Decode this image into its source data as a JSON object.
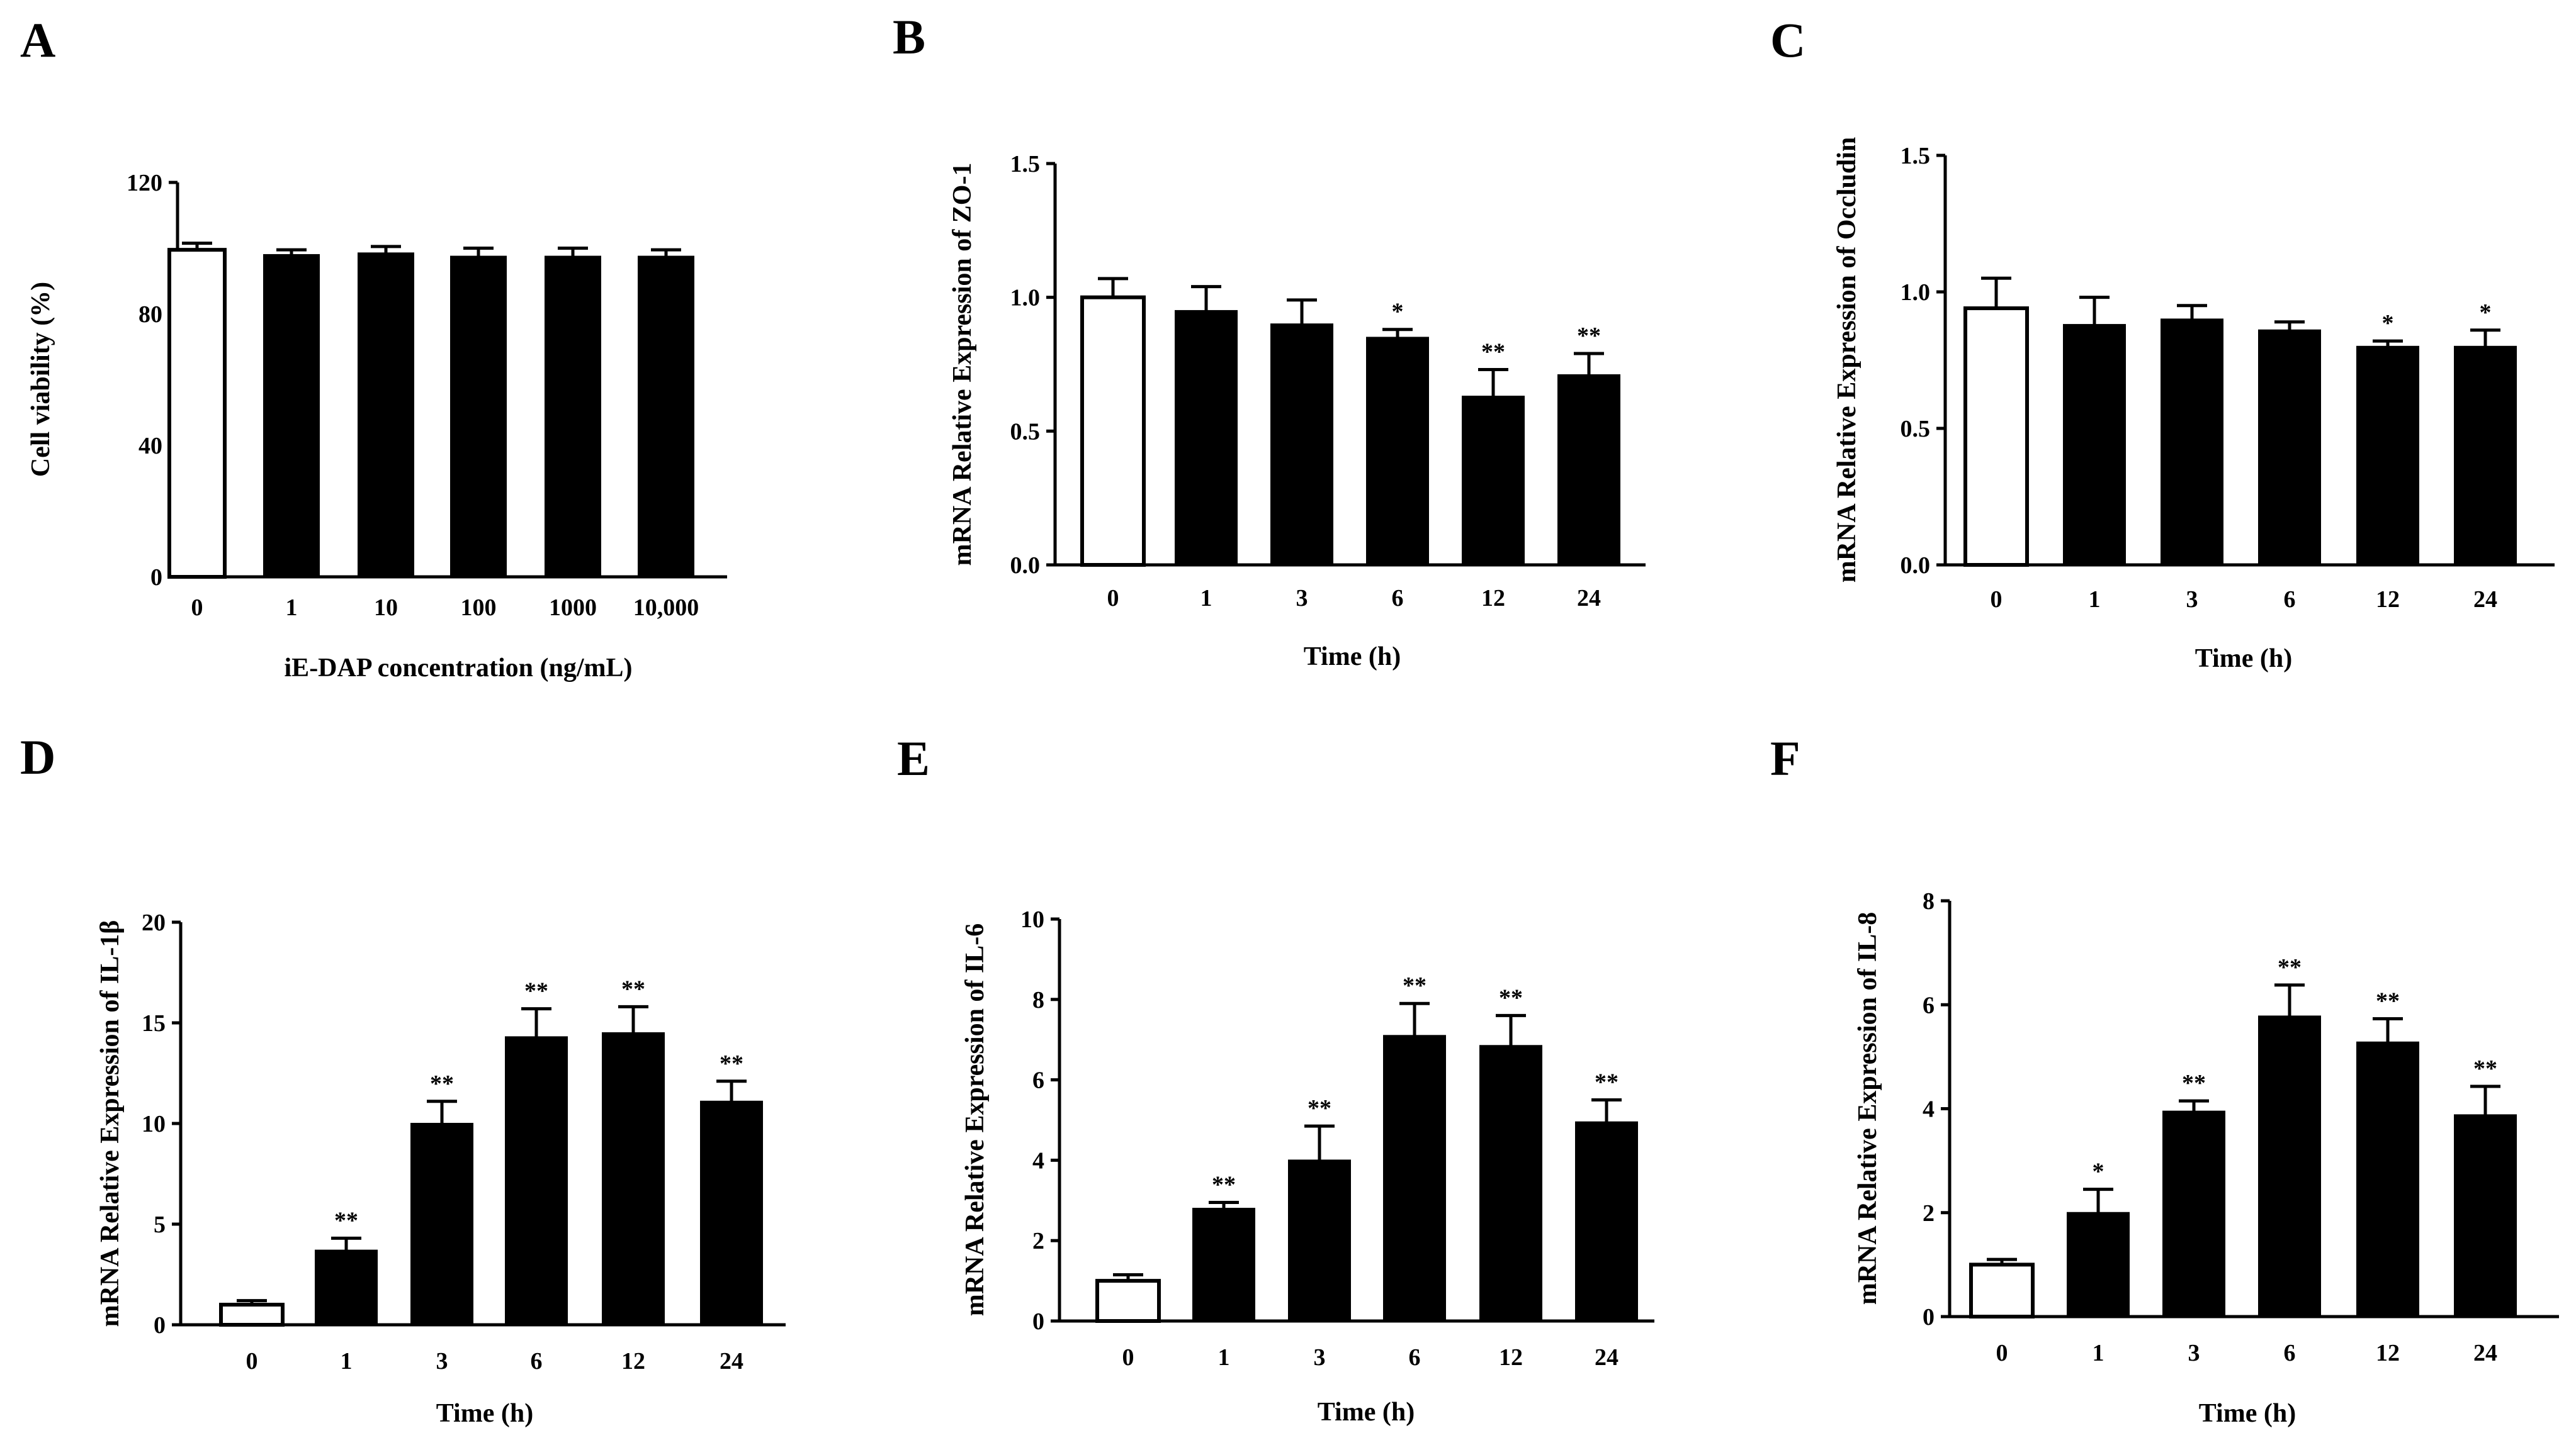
{
  "chart_data": [
    {
      "id": "A",
      "panel_label": "A",
      "type": "bar",
      "categories": [
        "0",
        "1",
        "10",
        "100",
        "1000",
        "10,000"
      ],
      "values": [
        99.5,
        98,
        98.5,
        97.5,
        97.5,
        97.5
      ],
      "errors": [
        2.0,
        1.5,
        2.0,
        2.5,
        2.5,
        2.0
      ],
      "significance": [
        "",
        "",
        "",
        "",
        "",
        ""
      ],
      "open_bars": [
        0
      ],
      "ylim": [
        0,
        120
      ],
      "yticks": [
        "0",
        "40",
        "80",
        "120"
      ],
      "xlabel": "iE-DAP concentration (ng/mL)",
      "ylabel": "Cell viability (%)"
    },
    {
      "id": "B",
      "panel_label": "B",
      "type": "bar",
      "categories": [
        "0",
        "1",
        "3",
        "6",
        "12",
        "24"
      ],
      "values": [
        1.0,
        0.95,
        0.9,
        0.85,
        0.63,
        0.71
      ],
      "errors": [
        0.07,
        0.09,
        0.09,
        0.03,
        0.1,
        0.08
      ],
      "significance": [
        "",
        "",
        "",
        "*",
        "**",
        "**"
      ],
      "open_bars": [
        0
      ],
      "ylim": [
        0,
        1.5
      ],
      "yticks": [
        "0.0",
        "0.5",
        "1.0",
        "1.5"
      ],
      "xlabel": "Time (h)",
      "ylabel": "mRNA Relative Expression of ZO-1"
    },
    {
      "id": "C",
      "panel_label": "C",
      "type": "bar",
      "categories": [
        "0",
        "1",
        "3",
        "6",
        "12",
        "24"
      ],
      "values": [
        0.94,
        0.88,
        0.9,
        0.86,
        0.8,
        0.8
      ],
      "errors": [
        0.11,
        0.1,
        0.05,
        0.03,
        0.02,
        0.06
      ],
      "significance": [
        "",
        "",
        "",
        "",
        "*",
        "*"
      ],
      "open_bars": [
        0
      ],
      "ylim": [
        0,
        1.5
      ],
      "yticks": [
        "0.0",
        "0.5",
        "1.0",
        "1.5"
      ],
      "xlabel": "Time (h)",
      "ylabel": "mRNA Relative Expression of Occludin"
    },
    {
      "id": "D",
      "panel_label": "D",
      "type": "bar",
      "categories": [
        "0",
        "1",
        "3",
        "6",
        "12",
        "24"
      ],
      "values": [
        1.0,
        3.7,
        10.0,
        14.3,
        14.5,
        11.1
      ],
      "errors": [
        0.2,
        0.6,
        1.1,
        1.4,
        1.3,
        1.0
      ],
      "significance": [
        "",
        "**",
        "**",
        "**",
        "**",
        "**"
      ],
      "open_bars": [
        0
      ],
      "ylim": [
        0,
        20
      ],
      "yticks": [
        "0",
        "5",
        "10",
        "15",
        "20"
      ],
      "xlabel": "Time (h)",
      "ylabel": "mRNA Relative Expression of IL-1β"
    },
    {
      "id": "E",
      "panel_label": "E",
      "type": "bar",
      "categories": [
        "0",
        "1",
        "3",
        "6",
        "12",
        "24"
      ],
      "values": [
        1.0,
        2.8,
        4.0,
        7.1,
        6.85,
        4.95
      ],
      "errors": [
        0.15,
        0.15,
        0.85,
        0.8,
        0.75,
        0.55
      ],
      "significance": [
        "",
        "**",
        "**",
        "**",
        "**",
        "**"
      ],
      "open_bars": [
        0
      ],
      "ylim": [
        0,
        10
      ],
      "yticks": [
        "0",
        "2",
        "4",
        "6",
        "8",
        "10"
      ],
      "xlabel": "Time (h)",
      "ylabel": "mRNA Relative Expression of IL-6"
    },
    {
      "id": "F",
      "panel_label": "F",
      "type": "bar",
      "categories": [
        "0",
        "1",
        "3",
        "6",
        "12",
        "24"
      ],
      "values": [
        1.0,
        2.0,
        3.95,
        5.78,
        5.28,
        3.88
      ],
      "errors": [
        0.1,
        0.45,
        0.2,
        0.6,
        0.45,
        0.55
      ],
      "significance": [
        "",
        "*",
        "**",
        "**",
        "**",
        "**"
      ],
      "open_bars": [
        0
      ],
      "ylim": [
        0,
        8
      ],
      "yticks": [
        "0",
        "2",
        "4",
        "6",
        "8"
      ],
      "xlabel": "Time (h)",
      "ylabel": "mRNA Relative Expression of IL-8"
    }
  ]
}
